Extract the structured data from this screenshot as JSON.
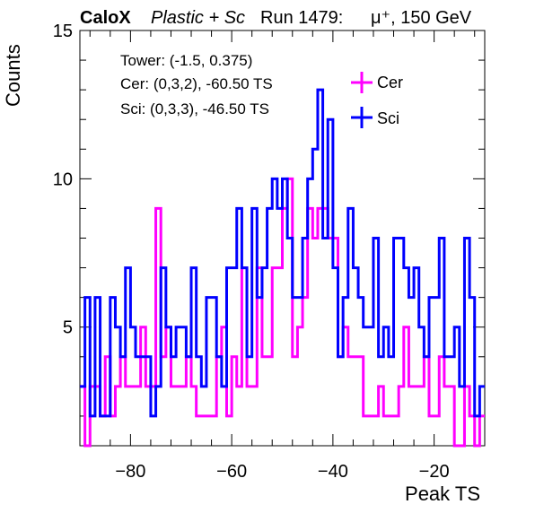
{
  "title": {
    "brand": "CaloX",
    "material": "Plastic + Sc",
    "run": "Run 1479:",
    "particle": "μ⁺, 150 GeV"
  },
  "info": {
    "tower": "Tower: (-1.5, 0.375)",
    "cer": "Cer: (0,3,2), -60.50 TS",
    "sci": "Sci: (0,3,3), -46.50 TS"
  },
  "chart_data": {
    "type": "histogram",
    "xlabel": "Peak TS",
    "ylabel": "Counts",
    "xlim": [
      -90,
      -10
    ],
    "ylim": [
      1,
      15
    ],
    "bin_width": 1,
    "x_ticks": [
      -80,
      -60,
      -40,
      -20
    ],
    "x_tick_labels": [
      "−80",
      "−60",
      "−40",
      "−20"
    ],
    "y_ticks": [
      5,
      10,
      15
    ],
    "y_tick_labels": [
      "5",
      "10",
      "15"
    ],
    "legend_position": "top-right",
    "series": [
      {
        "name": "Cer",
        "color": "#ff00ff",
        "values": [
          3,
          1,
          3,
          3,
          2,
          4,
          2,
          3,
          4,
          3,
          3,
          3,
          5,
          3,
          3,
          9,
          4,
          5,
          3,
          3,
          3,
          4,
          3,
          2,
          2,
          2,
          2,
          4,
          5,
          2,
          4,
          3,
          7,
          3,
          3,
          7,
          4,
          4,
          7,
          7,
          9,
          10,
          4,
          5,
          6,
          9,
          8,
          9,
          9,
          8,
          8,
          4,
          5,
          4,
          4,
          4,
          2,
          2,
          2,
          3,
          2,
          2,
          2,
          3,
          5,
          3,
          3,
          3,
          4,
          2,
          2,
          4,
          3,
          3,
          1,
          1,
          3,
          2,
          1,
          2
        ]
      },
      {
        "name": "Sci",
        "color": "#0000ff",
        "values": [
          3,
          6,
          2,
          6,
          2,
          2,
          6,
          5,
          4,
          7,
          5,
          4,
          4,
          4,
          2,
          3,
          7,
          5,
          4,
          5,
          5,
          4,
          7,
          4,
          3,
          6,
          6,
          4,
          3,
          7,
          7,
          9,
          7,
          4,
          9,
          6,
          7,
          9,
          10,
          9,
          10,
          8,
          6,
          6,
          8,
          10,
          11,
          13,
          8,
          12,
          7,
          4,
          6,
          9,
          7,
          6,
          5,
          5,
          8,
          4,
          5,
          4,
          8,
          8,
          7,
          6,
          7,
          5,
          4,
          6,
          6,
          8,
          4,
          4,
          5,
          3,
          8,
          6,
          2,
          3
        ]
      }
    ]
  }
}
